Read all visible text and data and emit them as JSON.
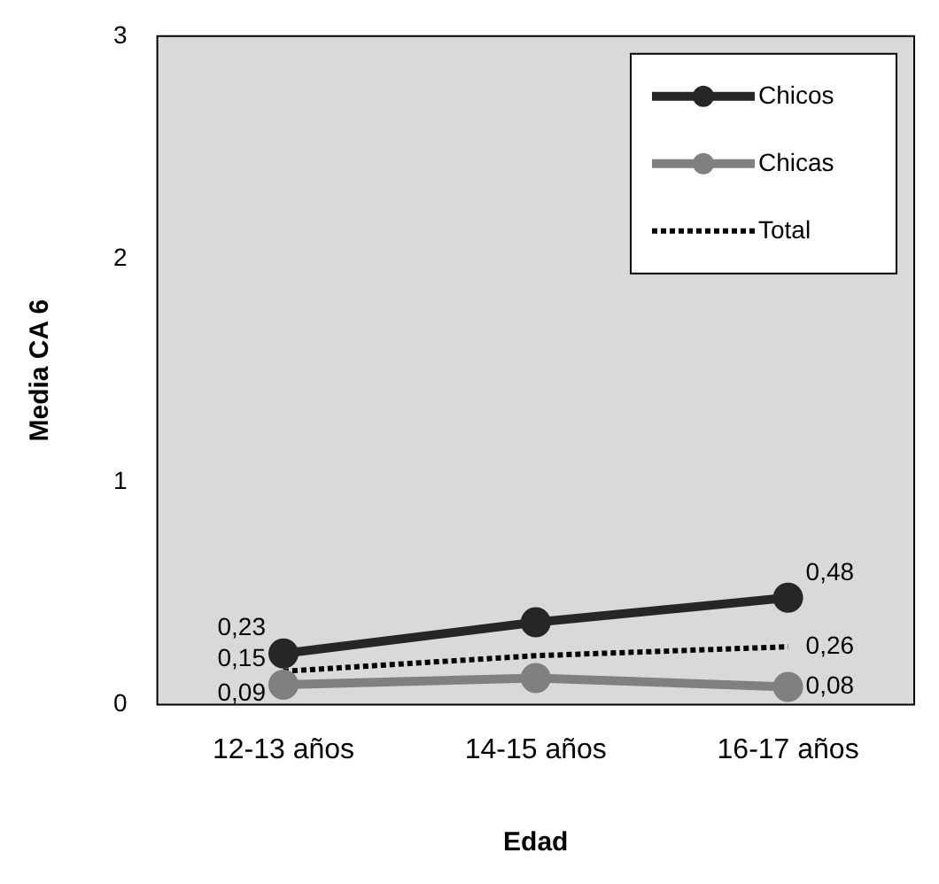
{
  "chart_data": {
    "type": "line",
    "xlabel": "Edad",
    "ylabel": "Media CA 6",
    "categories": [
      "12-13 años",
      "14-15 años",
      "16-17 años"
    ],
    "series": [
      {
        "name": "Chicos",
        "color": "#262626",
        "values": [
          0.23,
          0.37,
          0.48
        ],
        "marker": "circle",
        "line_style": "solid",
        "value_labels": [
          "0,23",
          null,
          "0,48"
        ]
      },
      {
        "name": "Chicas",
        "color": "#808080",
        "values": [
          0.09,
          0.12,
          0.08
        ],
        "marker": "circle",
        "line_style": "solid",
        "value_labels": [
          "0,09",
          null,
          "0,08"
        ]
      },
      {
        "name": "Total",
        "color": "#000000",
        "values": [
          0.15,
          0.22,
          0.26
        ],
        "marker": "none",
        "line_style": "dotted",
        "value_labels": [
          "0,15",
          null,
          "0,26"
        ]
      }
    ],
    "ylim": [
      0,
      3
    ],
    "yticks": [
      0,
      1,
      2,
      3
    ],
    "grid": false,
    "legend": "top right"
  }
}
